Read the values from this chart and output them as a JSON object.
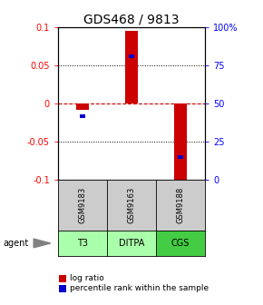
{
  "title": "GDS468 / 9813",
  "samples": [
    "GSM9183",
    "GSM9163",
    "GSM9188"
  ],
  "agents": [
    "T3",
    "DITPA",
    "CGS"
  ],
  "log_ratios": [
    -0.008,
    0.096,
    -0.101
  ],
  "percentile_ranks": [
    0.42,
    0.81,
    0.15
  ],
  "ylim": [
    -0.1,
    0.1
  ],
  "right_yticks": [
    0,
    25,
    50,
    75,
    100
  ],
  "right_yticklabels": [
    "0",
    "25",
    "50",
    "75",
    "100%"
  ],
  "left_yticks": [
    -0.1,
    -0.05,
    0,
    0.05,
    0.1
  ],
  "left_yticklabels": [
    "-0.1",
    "-0.05",
    "0",
    "0.05",
    "0.1"
  ],
  "bar_color": "#cc0000",
  "pct_color": "#0000cc",
  "zero_line_color": "#cc0000",
  "sample_box_color": "#cccccc",
  "agent_box_color_light": "#aaffaa",
  "agent_box_color_medium": "#44cc44",
  "title_fontsize": 10,
  "tick_fontsize": 7,
  "bar_width": 0.25,
  "pct_bar_width": 0.1
}
